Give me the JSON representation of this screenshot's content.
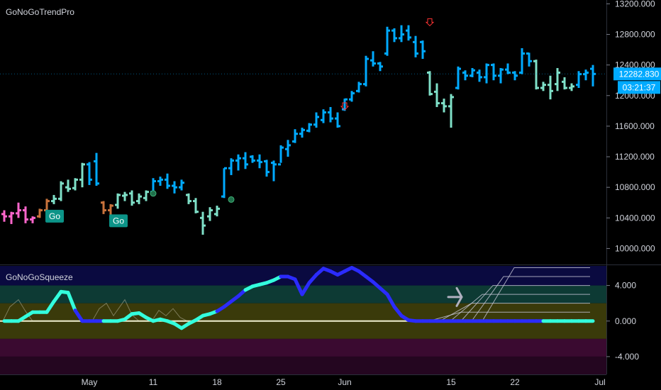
{
  "main_indicator_title": "GoNoGoTrendPro",
  "squeeze_indicator_title": "GoNoGoSqueeze",
  "price_tag": "12282.830",
  "countdown_tag": "03:21:37",
  "go_label": "Go",
  "colors": {
    "background": "#000000",
    "go_strong": "#00aaff",
    "go_weak": "#7fe0c8",
    "nogo_strong": "#ff66cc",
    "nogo_weak": "#c8733c",
    "price_tag_bg": "#00aaff",
    "squeeze_blue": "#2b2bff",
    "squeeze_aqua": "#33ffdd"
  },
  "chart_data": [
    {
      "type": "bar",
      "name": "price",
      "ylim": [
        9800,
        13250
      ],
      "y_ticks": [
        "13200.000",
        "12800.000",
        "12400.000",
        "12000.000",
        "11600.000",
        "11200.000",
        "10800.000",
        "10400.000",
        "10000.000"
      ],
      "y_tick_values": [
        13200,
        12800,
        12400,
        12000,
        11600,
        11200,
        10800,
        10400,
        10000
      ],
      "x_ticks": [
        "May",
        "11",
        "18",
        "25",
        "Jun",
        "15",
        "22",
        "Jul"
      ],
      "last_price": 12282.83,
      "bars": [
        {
          "o": 10450,
          "h": 10500,
          "l": 10350,
          "c": 10420,
          "s": "nogo_strong"
        },
        {
          "o": 10420,
          "h": 10480,
          "l": 10320,
          "c": 10460,
          "s": "nogo_strong"
        },
        {
          "o": 10460,
          "h": 10600,
          "l": 10400,
          "c": 10500,
          "s": "nogo_strong"
        },
        {
          "o": 10500,
          "h": 10550,
          "l": 10330,
          "c": 10380,
          "s": "nogo_strong"
        },
        {
          "o": 10380,
          "h": 10420,
          "l": 10330,
          "c": 10400,
          "s": "nogo_strong"
        },
        {
          "o": 10420,
          "h": 10520,
          "l": 10400,
          "c": 10500,
          "s": "nogo_weak"
        },
        {
          "o": 10500,
          "h": 10650,
          "l": 10480,
          "c": 10620,
          "s": "nogo_weak"
        },
        {
          "o": 10620,
          "h": 10700,
          "l": 10580,
          "c": 10650,
          "s": "go_weak"
        },
        {
          "o": 10650,
          "h": 10880,
          "l": 10620,
          "c": 10850,
          "s": "go_weak"
        },
        {
          "o": 10800,
          "h": 10900,
          "l": 10740,
          "c": 10780,
          "s": "go_weak"
        },
        {
          "o": 10790,
          "h": 10920,
          "l": 10760,
          "c": 10900,
          "s": "go_weak"
        },
        {
          "o": 10900,
          "h": 11120,
          "l": 10800,
          "c": 11100,
          "s": "go_weak"
        },
        {
          "o": 11100,
          "h": 11130,
          "l": 10830,
          "c": 10900,
          "s": "go_strong"
        },
        {
          "o": 11140,
          "h": 11250,
          "l": 10820,
          "c": 10850,
          "s": "go_strong"
        },
        {
          "o": 10600,
          "h": 10620,
          "l": 10450,
          "c": 10500,
          "s": "nogo_weak"
        },
        {
          "o": 10500,
          "h": 10580,
          "l": 10440,
          "c": 10560,
          "s": "nogo_weak"
        },
        {
          "o": 10570,
          "h": 10720,
          "l": 10520,
          "c": 10700,
          "s": "go_weak"
        },
        {
          "o": 10690,
          "h": 10740,
          "l": 10620,
          "c": 10700,
          "s": "go_weak"
        },
        {
          "o": 10720,
          "h": 10760,
          "l": 10560,
          "c": 10600,
          "s": "go_weak"
        },
        {
          "o": 10620,
          "h": 10720,
          "l": 10580,
          "c": 10680,
          "s": "go_weak"
        },
        {
          "o": 10660,
          "h": 10760,
          "l": 10620,
          "c": 10740,
          "s": "go_weak"
        },
        {
          "o": 10740,
          "h": 10920,
          "l": 10720,
          "c": 10880,
          "s": "go_strong"
        },
        {
          "o": 10880,
          "h": 10940,
          "l": 10820,
          "c": 10900,
          "s": "go_strong"
        },
        {
          "o": 10900,
          "h": 10980,
          "l": 10780,
          "c": 10820,
          "s": "go_strong"
        },
        {
          "o": 10820,
          "h": 10880,
          "l": 10720,
          "c": 10800,
          "s": "go_strong"
        },
        {
          "o": 10800,
          "h": 10900,
          "l": 10760,
          "c": 10860,
          "s": "go_strong"
        },
        {
          "o": 10700,
          "h": 10720,
          "l": 10580,
          "c": 10620,
          "s": "go_weak"
        },
        {
          "o": 10620,
          "h": 10660,
          "l": 10460,
          "c": 10480,
          "s": "go_weak"
        },
        {
          "o": 10400,
          "h": 10480,
          "l": 10180,
          "c": 10300,
          "s": "go_weak"
        },
        {
          "o": 10420,
          "h": 10540,
          "l": 10360,
          "c": 10500,
          "s": "go_weak"
        },
        {
          "o": 10450,
          "h": 10560,
          "l": 10420,
          "c": 10520,
          "s": "go_weak"
        },
        {
          "o": 10680,
          "h": 11050,
          "l": 10660,
          "c": 11050,
          "s": "go_strong"
        },
        {
          "o": 11050,
          "h": 11180,
          "l": 10960,
          "c": 11150,
          "s": "go_strong"
        },
        {
          "o": 11150,
          "h": 11230,
          "l": 11020,
          "c": 11180,
          "s": "go_strong"
        },
        {
          "o": 11180,
          "h": 11260,
          "l": 11040,
          "c": 11100,
          "s": "go_strong"
        },
        {
          "o": 11200,
          "h": 11220,
          "l": 11120,
          "c": 11150,
          "s": "go_strong"
        },
        {
          "o": 11150,
          "h": 11230,
          "l": 11050,
          "c": 11130,
          "s": "go_strong"
        },
        {
          "o": 11140,
          "h": 11160,
          "l": 10940,
          "c": 11000,
          "s": "go_strong"
        },
        {
          "o": 11120,
          "h": 11150,
          "l": 10880,
          "c": 11100,
          "s": "go_strong"
        },
        {
          "o": 11100,
          "h": 11350,
          "l": 11120,
          "c": 11320,
          "s": "go_strong"
        },
        {
          "o": 11300,
          "h": 11420,
          "l": 11200,
          "c": 11350,
          "s": "go_strong"
        },
        {
          "o": 11400,
          "h": 11560,
          "l": 11380,
          "c": 11500,
          "s": "go_strong"
        },
        {
          "o": 11500,
          "h": 11580,
          "l": 11450,
          "c": 11550,
          "s": "go_strong"
        },
        {
          "o": 11540,
          "h": 11640,
          "l": 11520,
          "c": 11620,
          "s": "go_strong"
        },
        {
          "o": 11620,
          "h": 11780,
          "l": 11580,
          "c": 11720,
          "s": "go_strong"
        },
        {
          "o": 11680,
          "h": 11820,
          "l": 11640,
          "c": 11780,
          "s": "go_strong"
        },
        {
          "o": 11780,
          "h": 11850,
          "l": 11650,
          "c": 11700,
          "s": "go_strong"
        },
        {
          "o": 11700,
          "h": 11780,
          "l": 11580,
          "c": 11600,
          "s": "go_strong"
        },
        {
          "o": 11820,
          "h": 11960,
          "l": 11800,
          "c": 11950,
          "s": "go_strong"
        },
        {
          "o": 11950,
          "h": 12060,
          "l": 11920,
          "c": 12030,
          "s": "go_strong"
        },
        {
          "o": 12060,
          "h": 12180,
          "l": 12040,
          "c": 12150,
          "s": "go_strong"
        },
        {
          "o": 12150,
          "h": 12520,
          "l": 12120,
          "c": 12480,
          "s": "go_strong"
        },
        {
          "o": 12460,
          "h": 12580,
          "l": 12380,
          "c": 12420,
          "s": "go_strong"
        },
        {
          "o": 12420,
          "h": 12440,
          "l": 12320,
          "c": 12380,
          "s": "go_strong"
        },
        {
          "o": 12550,
          "h": 12900,
          "l": 12520,
          "c": 12850,
          "s": "go_strong"
        },
        {
          "o": 12850,
          "h": 12880,
          "l": 12700,
          "c": 12750,
          "s": "go_strong"
        },
        {
          "o": 12750,
          "h": 12920,
          "l": 12700,
          "c": 12800,
          "s": "go_strong"
        },
        {
          "o": 12850,
          "h": 12920,
          "l": 12720,
          "c": 12760,
          "s": "go_strong"
        },
        {
          "o": 12700,
          "h": 12780,
          "l": 12500,
          "c": 12550,
          "s": "go_strong"
        },
        {
          "o": 12700,
          "h": 12720,
          "l": 12480,
          "c": 12580,
          "s": "go_strong"
        },
        {
          "o": 12300,
          "h": 12320,
          "l": 12000,
          "c": 12020,
          "s": "go_weak"
        },
        {
          "o": 12050,
          "h": 12160,
          "l": 11850,
          "c": 11900,
          "s": "go_weak"
        },
        {
          "o": 11900,
          "h": 11960,
          "l": 11780,
          "c": 11860,
          "s": "go_weak"
        },
        {
          "o": 11860,
          "h": 12020,
          "l": 11580,
          "c": 11980,
          "s": "go_weak"
        },
        {
          "o": 12100,
          "h": 12380,
          "l": 12080,
          "c": 12350,
          "s": "go_strong"
        },
        {
          "o": 12300,
          "h": 12330,
          "l": 12200,
          "c": 12260,
          "s": "go_strong"
        },
        {
          "o": 12260,
          "h": 12360,
          "l": 12240,
          "c": 12330,
          "s": "go_strong"
        },
        {
          "o": 12300,
          "h": 12340,
          "l": 12180,
          "c": 12240,
          "s": "go_strong"
        },
        {
          "o": 12240,
          "h": 12420,
          "l": 12160,
          "c": 12400,
          "s": "go_strong"
        },
        {
          "o": 12400,
          "h": 12420,
          "l": 12200,
          "c": 12260,
          "s": "go_strong"
        },
        {
          "o": 12260,
          "h": 12360,
          "l": 12160,
          "c": 12340,
          "s": "go_strong"
        },
        {
          "o": 12340,
          "h": 12420,
          "l": 12280,
          "c": 12300,
          "s": "go_strong"
        },
        {
          "o": 12300,
          "h": 12320,
          "l": 12200,
          "c": 12260,
          "s": "go_strong"
        },
        {
          "o": 12300,
          "h": 12620,
          "l": 12280,
          "c": 12550,
          "s": "go_strong"
        },
        {
          "o": 12550,
          "h": 12560,
          "l": 12380,
          "c": 12450,
          "s": "go_strong"
        },
        {
          "o": 12450,
          "h": 12470,
          "l": 12080,
          "c": 12100,
          "s": "go_weak"
        },
        {
          "o": 12100,
          "h": 12180,
          "l": 12060,
          "c": 12140,
          "s": "go_weak"
        },
        {
          "o": 12140,
          "h": 12260,
          "l": 11950,
          "c": 12060,
          "s": "go_weak"
        },
        {
          "o": 12150,
          "h": 12360,
          "l": 12060,
          "c": 12300,
          "s": "go_weak"
        },
        {
          "o": 12180,
          "h": 12240,
          "l": 12080,
          "c": 12100,
          "s": "go_weak"
        },
        {
          "o": 12100,
          "h": 12160,
          "l": 12060,
          "c": 12120,
          "s": "go_weak"
        },
        {
          "o": 12140,
          "h": 12320,
          "l": 12100,
          "c": 12280,
          "s": "go_strong"
        },
        {
          "o": 12280,
          "h": 12340,
          "l": 12200,
          "c": 12300,
          "s": "go_strong"
        },
        {
          "o": 12350,
          "h": 12400,
          "l": 12120,
          "c": 12282.83,
          "s": "go_strong"
        }
      ],
      "go_labels_at_bar": [
        7,
        16
      ],
      "circle_markers_at_bar": [
        {
          "i": 21,
          "v": 10720
        },
        {
          "i": 32,
          "v": 10640
        }
      ],
      "countertrend_arrows_at_bar": [
        {
          "i": 48,
          "v": 11850
        },
        {
          "i": 60,
          "v": 12950
        }
      ]
    },
    {
      "type": "line",
      "name": "squeeze",
      "ylim": [
        -6,
        6.2
      ],
      "y_ticks": [
        "4.000",
        "0.000",
        "-4.000"
      ],
      "y_tick_values": [
        4,
        0,
        -4
      ],
      "values": [
        0,
        0,
        0,
        0.5,
        1,
        1,
        1,
        2.2,
        3.3,
        3.2,
        1.2,
        0,
        0,
        0,
        0,
        0,
        0,
        0.2,
        0.8,
        0.9,
        0.4,
        0,
        0.2,
        0,
        -0.3,
        -0.8,
        -0.3,
        0.1,
        0.6,
        0.8,
        1.1,
        1.6,
        2.2,
        2.8,
        3.5,
        3.9,
        4.1,
        4.3,
        4.6,
        5.0,
        5.0,
        4.7,
        3.0,
        4.3,
        5.2,
        5.9,
        5.6,
        5.2,
        5.6,
        6.0,
        5.6,
        5.0,
        4.4,
        3.7,
        3.0,
        1.6,
        0.6,
        0.1,
        0,
        0,
        0,
        0,
        0,
        0,
        0,
        0,
        0,
        0,
        0,
        0,
        0,
        0,
        0,
        0,
        0,
        0,
        0,
        0,
        0,
        0,
        0,
        0,
        0,
        0
      ],
      "segment_colors": [
        "aqua",
        "aqua",
        "aqua",
        "aqua",
        "aqua",
        "aqua",
        "aqua",
        "aqua",
        "aqua",
        "aqua",
        "blue",
        "blue",
        "blue",
        "blue",
        "aqua",
        "aqua",
        "aqua",
        "aqua",
        "aqua",
        "aqua",
        "aqua",
        "aqua",
        "aqua",
        "aqua",
        "aqua",
        "aqua",
        "aqua",
        "aqua",
        "aqua",
        "aqua",
        "blue",
        "blue",
        "blue",
        "blue",
        "aqua",
        "aqua",
        "aqua",
        "aqua",
        "aqua",
        "blue",
        "blue",
        "blue",
        "blue",
        "blue",
        "blue",
        "blue",
        "blue",
        "blue",
        "blue",
        "blue",
        "blue",
        "blue",
        "blue",
        "blue",
        "blue",
        "blue",
        "blue",
        "blue",
        "blue",
        "blue",
        "blue",
        "blue",
        "blue",
        "blue",
        "blue",
        "blue",
        "blue",
        "blue",
        "blue",
        "blue",
        "blue",
        "blue",
        "blue",
        "blue",
        "blue",
        "blue",
        "aqua",
        "aqua",
        "aqua",
        "aqua",
        "aqua",
        "aqua",
        "aqua",
        "aqua"
      ]
    }
  ]
}
